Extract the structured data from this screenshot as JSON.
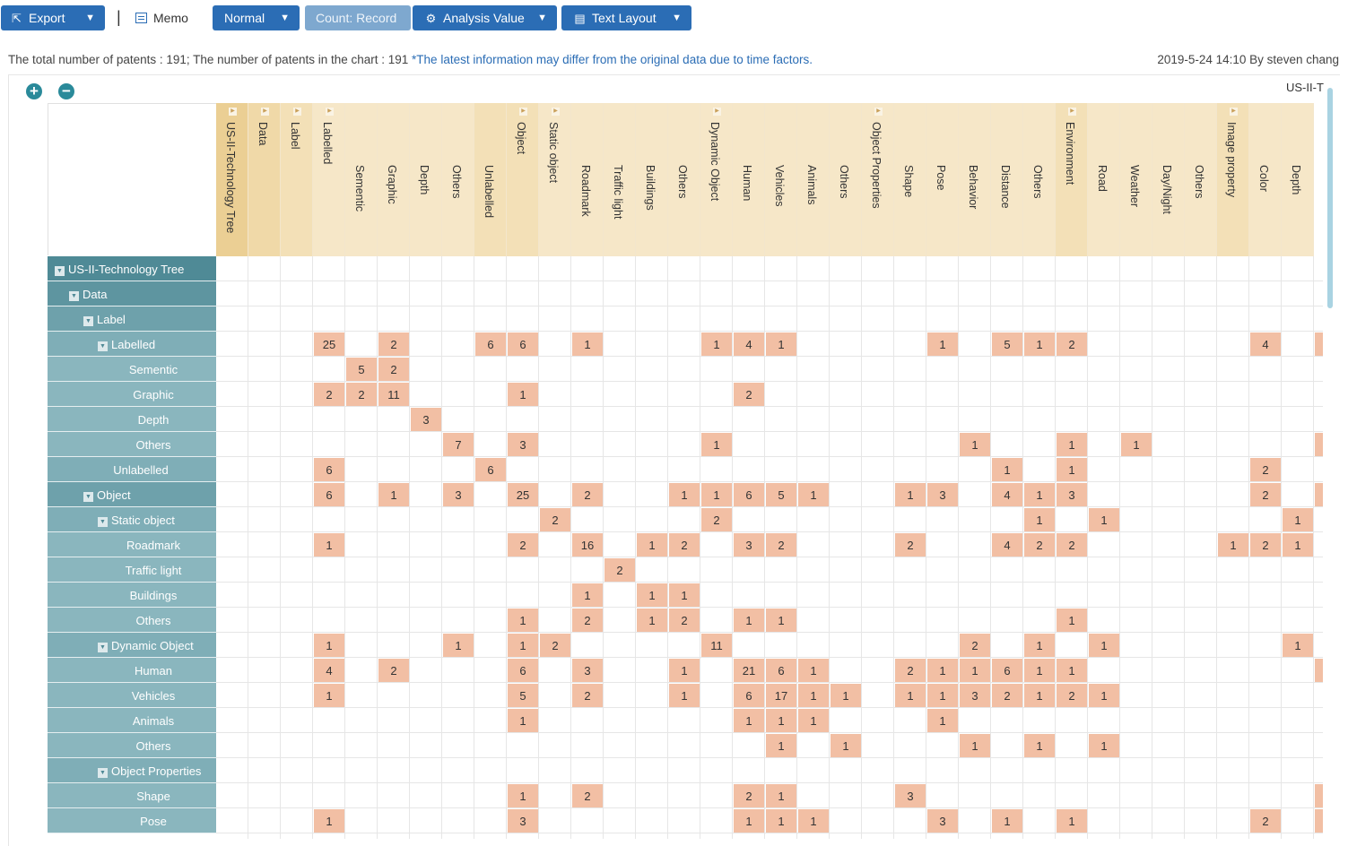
{
  "toolbar": {
    "export": "Export",
    "separator": "|",
    "memo": "Memo",
    "normal": "Normal",
    "count": "Count: Record",
    "analysis_value": "Analysis Value",
    "text_layout": "Text Layout"
  },
  "info": {
    "summary": "The total number of patents : 191; The number of patents in the chart : 191",
    "note": "*The latest information may differ from the original data due to time factors.",
    "timestamp": "2019-5-24 14:10 By steven chang"
  },
  "chart": {
    "zoom_in": "+",
    "zoom_out": "−",
    "top_label": "US-II-T"
  },
  "columns": [
    {
      "label": "US-II-Technology Tree",
      "level": 0,
      "expander": true
    },
    {
      "label": "Data",
      "level": 1,
      "expander": true
    },
    {
      "label": "Label",
      "level": 2,
      "expander": true
    },
    {
      "label": "Labelled",
      "level": 3,
      "expander": true
    },
    {
      "label": "Sementic",
      "level": 3,
      "expander": false
    },
    {
      "label": "Graphic",
      "level": 3,
      "expander": false
    },
    {
      "label": "Depth",
      "level": 3,
      "expander": false
    },
    {
      "label": "Others",
      "level": 3,
      "expander": false
    },
    {
      "label": "Unlabelled",
      "level": 2,
      "expander": false
    },
    {
      "label": "Object",
      "level": 2,
      "expander": true
    },
    {
      "label": "Static object",
      "level": 3,
      "expander": true
    },
    {
      "label": "Roadmark",
      "level": 3,
      "expander": false
    },
    {
      "label": "Traffic light",
      "level": 3,
      "expander": false
    },
    {
      "label": "Buildings",
      "level": 3,
      "expander": false
    },
    {
      "label": "Others",
      "level": 3,
      "expander": false
    },
    {
      "label": "Dynamic Object",
      "level": 3,
      "expander": true
    },
    {
      "label": "Human",
      "level": 3,
      "expander": false
    },
    {
      "label": "Vehicles",
      "level": 3,
      "expander": false
    },
    {
      "label": "Animals",
      "level": 3,
      "expander": false
    },
    {
      "label": "Others",
      "level": 3,
      "expander": false
    },
    {
      "label": "Object Properties",
      "level": 3,
      "expander": true
    },
    {
      "label": "Shape",
      "level": 3,
      "expander": false
    },
    {
      "label": "Pose",
      "level": 3,
      "expander": false
    },
    {
      "label": "Behavior",
      "level": 3,
      "expander": false
    },
    {
      "label": "Distance",
      "level": 3,
      "expander": false
    },
    {
      "label": "Others",
      "level": 3,
      "expander": false
    },
    {
      "label": "Environment",
      "level": 2,
      "expander": true
    },
    {
      "label": "Road",
      "level": 3,
      "expander": false
    },
    {
      "label": "Weather",
      "level": 3,
      "expander": false
    },
    {
      "label": "Day/Night",
      "level": 3,
      "expander": false
    },
    {
      "label": "Others",
      "level": 3,
      "expander": false
    },
    {
      "label": "Image property",
      "level": 2,
      "expander": true
    },
    {
      "label": "Color",
      "level": 3,
      "expander": false
    },
    {
      "label": "Depth",
      "level": 3,
      "expander": false
    }
  ],
  "rows": [
    {
      "label": "US-II-Technology Tree",
      "depth": 0,
      "toggle": true,
      "cells": {}
    },
    {
      "label": "Data",
      "depth": 1,
      "toggle": true,
      "cells": {}
    },
    {
      "label": "Label",
      "depth": 2,
      "toggle": true,
      "cells": {}
    },
    {
      "label": "Labelled",
      "depth": 3,
      "toggle": true,
      "cells": {
        "3": "25",
        "5": "2",
        "8": "6",
        "9": "6",
        "11": "1",
        "15": "1",
        "16": "4",
        "17": "1",
        "22": "1",
        "24": "5",
        "25": "1",
        "26": "2",
        "32": "4",
        "34": ""
      }
    },
    {
      "label": "Sementic",
      "depth": 4,
      "toggle": false,
      "cells": {
        "4": "5",
        "5": "2"
      }
    },
    {
      "label": "Graphic",
      "depth": 4,
      "toggle": false,
      "cells": {
        "3": "2",
        "4": "2",
        "5": "11",
        "9": "1",
        "16": "2"
      }
    },
    {
      "label": "Depth",
      "depth": 4,
      "toggle": false,
      "cells": {
        "6": "3"
      }
    },
    {
      "label": "Others",
      "depth": 4,
      "toggle": false,
      "cells": {
        "7": "7",
        "9": "3",
        "15": "1",
        "23": "1",
        "26": "1",
        "28": "1",
        "34": ""
      }
    },
    {
      "label": "Unlabelled",
      "depth": 3,
      "toggle": false,
      "cells": {
        "3": "6",
        "8": "6",
        "24": "1",
        "26": "1",
        "32": "2"
      }
    },
    {
      "label": "Object",
      "depth": 2,
      "toggle": true,
      "cells": {
        "3": "6",
        "5": "1",
        "7": "3",
        "9": "25",
        "11": "2",
        "14": "1",
        "15": "1",
        "16": "6",
        "17": "5",
        "18": "1",
        "21": "1",
        "22": "3",
        "24": "4",
        "25": "1",
        "26": "3",
        "32": "2",
        "34": ""
      }
    },
    {
      "label": "Static object",
      "depth": 3,
      "toggle": true,
      "cells": {
        "10": "2",
        "15": "2",
        "25": "1",
        "27": "1",
        "33": "1"
      }
    },
    {
      "label": "Roadmark",
      "depth": 4,
      "toggle": false,
      "cells": {
        "3": "1",
        "9": "2",
        "11": "16",
        "13": "1",
        "14": "2",
        "16": "3",
        "17": "2",
        "21": "2",
        "24": "4",
        "25": "2",
        "26": "2",
        "31": "1",
        "32": "2",
        "33": "1"
      }
    },
    {
      "label": "Traffic light",
      "depth": 4,
      "toggle": false,
      "cells": {
        "12": "2"
      }
    },
    {
      "label": "Buildings",
      "depth": 4,
      "toggle": false,
      "cells": {
        "11": "1",
        "13": "1",
        "14": "1"
      }
    },
    {
      "label": "Others",
      "depth": 4,
      "toggle": false,
      "cells": {
        "9": "1",
        "11": "2",
        "13": "1",
        "14": "2",
        "16": "1",
        "17": "1",
        "26": "1"
      }
    },
    {
      "label": "Dynamic Object",
      "depth": 3,
      "toggle": true,
      "cells": {
        "3": "1",
        "7": "1",
        "9": "1",
        "10": "2",
        "15": "11",
        "23": "2",
        "25": "1",
        "27": "1",
        "33": "1"
      }
    },
    {
      "label": "Human",
      "depth": 4,
      "toggle": false,
      "cells": {
        "3": "4",
        "5": "2",
        "9": "6",
        "11": "3",
        "14": "1",
        "16": "21",
        "17": "6",
        "18": "1",
        "21": "2",
        "22": "1",
        "23": "1",
        "24": "6",
        "25": "1",
        "26": "1",
        "34": ""
      }
    },
    {
      "label": "Vehicles",
      "depth": 4,
      "toggle": false,
      "cells": {
        "3": "1",
        "9": "5",
        "11": "2",
        "14": "1",
        "16": "6",
        "17": "17",
        "18": "1",
        "19": "1",
        "21": "1",
        "22": "1",
        "23": "3",
        "24": "2",
        "25": "1",
        "26": "2",
        "27": "1"
      }
    },
    {
      "label": "Animals",
      "depth": 4,
      "toggle": false,
      "cells": {
        "9": "1",
        "16": "1",
        "17": "1",
        "18": "1",
        "22": "1"
      }
    },
    {
      "label": "Others",
      "depth": 4,
      "toggle": false,
      "cells": {
        "17": "1",
        "19": "1",
        "23": "1",
        "25": "1",
        "27": "1"
      }
    },
    {
      "label": "Object Properties",
      "depth": 3,
      "toggle": true,
      "cells": {}
    },
    {
      "label": "Shape",
      "depth": 4,
      "toggle": false,
      "cells": {
        "9": "1",
        "11": "2",
        "16": "2",
        "17": "1",
        "21": "3",
        "34": ""
      }
    },
    {
      "label": "Pose",
      "depth": 4,
      "toggle": false,
      "cells": {
        "3": "1",
        "9": "3",
        "16": "1",
        "17": "1",
        "18": "1",
        "22": "3",
        "24": "1",
        "26": "1",
        "32": "2",
        "34": ""
      }
    }
  ]
}
